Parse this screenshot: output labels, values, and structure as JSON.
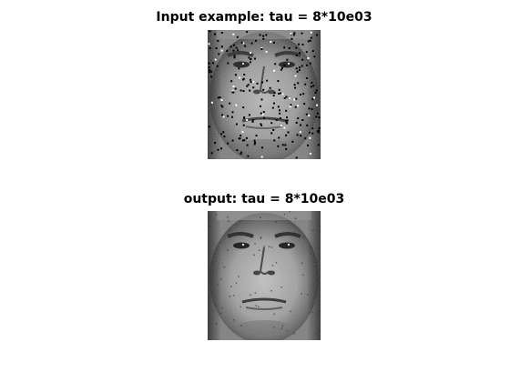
{
  "figure": {
    "top_title": "Input example: tau = 8*10e03",
    "bottom_title": "output: tau = 8*10e03"
  },
  "images": {
    "top": {
      "icon": "grayscale-face-noisy-image"
    },
    "bottom": {
      "icon": "grayscale-face-denoised-image"
    }
  },
  "colors": {
    "background": "#ffffff",
    "title": "#000000"
  }
}
